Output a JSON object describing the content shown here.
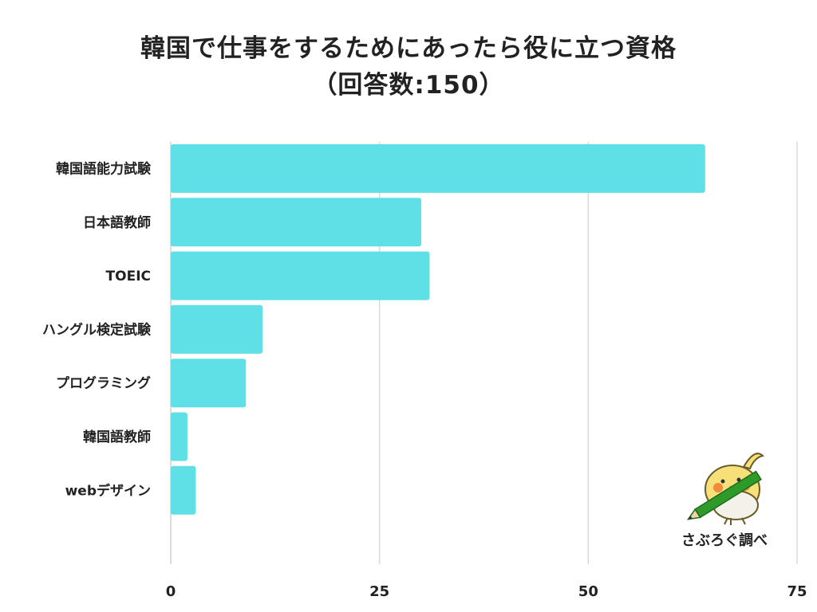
{
  "title": {
    "line1": "韓国で仕事をするためにあったら役に立つ資格",
    "line2": "（回答数:150）"
  },
  "credit": "さぶろぐ調べ",
  "colors": {
    "bar": "#5ee0e6",
    "grid": "#d9d9d9",
    "text": "#222222"
  },
  "chart_data": {
    "type": "bar",
    "orientation": "horizontal",
    "title": "韓国で仕事をするためにあったら役に立つ資格（回答数:150）",
    "categories": [
      "韓国語能力試験",
      "日本語教師",
      "TOEIC",
      "ハングル検定試験",
      "プログラミング",
      "韓国語教師",
      "webデザイン"
    ],
    "values": [
      64,
      30,
      31,
      11,
      9,
      2,
      3
    ],
    "xlim": [
      0,
      75
    ],
    "xticks": [
      0,
      25,
      50,
      75
    ],
    "grid": true,
    "legend": "none"
  }
}
